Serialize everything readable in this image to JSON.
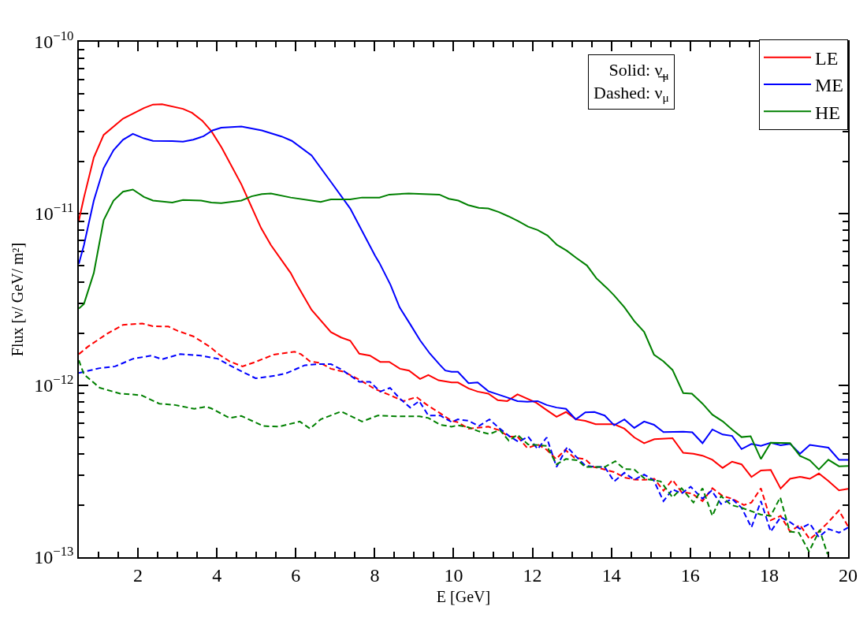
{
  "chart_data": {
    "type": "line",
    "xlabel": "E [GeV]",
    "ylabel": "Flux [ν/ GeV/ m²]",
    "annotations": [
      "Solid: ν̲$_{μ}$",
      "Dashed: ν$_{μ}$"
    ],
    "xlim": [
      0.5,
      20
    ],
    "xticks": [
      2,
      4,
      6,
      8,
      10,
      12,
      14,
      16,
      18,
      20
    ],
    "ylim": [
      1e-13,
      1e-10
    ],
    "log": "y",
    "yticks": [
      {
        "value": 1e-13,
        "label": "10$^{−13}$"
      },
      {
        "value": 1e-12,
        "label": "10$^{−12}$"
      },
      {
        "value": 1e-11,
        "label": "10$^{−11}$"
      },
      {
        "value": 1e-10,
        "label": "10$^{−10}$"
      }
    ],
    "grid": false,
    "legend": "top right",
    "marker": "none",
    "series": [
      {
        "name": "LE",
        "color": "#ff0000",
        "line_style": "solid",
        "x": [
          0.5,
          0.63,
          0.88,
          1.13,
          1.62,
          2.15,
          2.38,
          2.61,
          3.14,
          3.37,
          3.63,
          3.86,
          4.12,
          4.62,
          5.12,
          5.37,
          5.87,
          6.03,
          6.4,
          6.89,
          7.15,
          7.38,
          7.61,
          7.88,
          8.14,
          8.37,
          8.64,
          8.87,
          9.15,
          9.36,
          9.62,
          9.95,
          10.11,
          10.38,
          10.61,
          10.88,
          11.12,
          11.36,
          11.62,
          12.1,
          12.36,
          12.61,
          12.85,
          13.1,
          13.34,
          13.6,
          14.07,
          14.33,
          14.58,
          14.83,
          15.09,
          15.55,
          15.82,
          16.08,
          16.31,
          16.56,
          16.82,
          17.06,
          17.3,
          17.55,
          17.79,
          18.04,
          18.29,
          18.53,
          18.78,
          19.03,
          19.26,
          19.5,
          19.77,
          20
        ],
        "values": [
          9.1e-12,
          1.24e-11,
          2.12e-11,
          2.87e-11,
          3.57e-11,
          4.11e-11,
          4.31e-11,
          4.33e-11,
          4.07e-11,
          3.86e-11,
          3.47e-11,
          3.02e-11,
          2.42e-11,
          1.48e-11,
          8.24e-12,
          6.55e-12,
          4.51e-12,
          3.85e-12,
          2.75e-12,
          2.04e-12,
          1.9e-12,
          1.82e-12,
          1.53e-12,
          1.49e-12,
          1.37e-12,
          1.37e-12,
          1.25e-12,
          1.22e-12,
          1.09e-12,
          1.15e-12,
          1.07e-12,
          1.04e-12,
          1.04e-12,
          9.6e-13,
          9.2e-13,
          8.96e-13,
          8.2e-13,
          8.1e-13,
          8.87e-13,
          7.92e-13,
          7.18e-13,
          6.56e-13,
          7e-13,
          6.34e-13,
          6.22e-13,
          5.94e-13,
          5.94e-13,
          5.6e-13,
          4.98e-13,
          4.61e-13,
          4.86e-13,
          4.93e-13,
          4.05e-13,
          4e-13,
          3.9e-13,
          3.69e-13,
          3.31e-13,
          3.6e-13,
          3.47e-13,
          2.93e-13,
          3.2e-13,
          3.22e-13,
          2.51e-13,
          2.86e-13,
          2.94e-13,
          2.86e-13,
          3.07e-13,
          2.78e-13,
          2.45e-13,
          2.5e-13
        ]
      },
      {
        "name": "ME",
        "color": "#0000ff",
        "line_style": "solid",
        "x": [
          0.5,
          0.63,
          0.88,
          1.13,
          1.38,
          1.62,
          1.87,
          2.15,
          2.38,
          2.87,
          3.14,
          3.4,
          3.66,
          3.89,
          4.11,
          4.62,
          5.14,
          5.64,
          5.9,
          6.4,
          6.89,
          7.38,
          8.01,
          8.12,
          8.4,
          8.63,
          8.9,
          9.15,
          9.4,
          9.66,
          9.79,
          9.95,
          10.11,
          10.38,
          10.61,
          10.88,
          11.12,
          11.36,
          11.62,
          11.87,
          12.13,
          12.36,
          12.61,
          12.85,
          13.1,
          13.34,
          13.57,
          13.83,
          14.07,
          14.33,
          14.58,
          14.83,
          15.08,
          15.32,
          15.82,
          16.05,
          16.31,
          16.56,
          16.82,
          17.06,
          17.3,
          17.55,
          17.79,
          18.04,
          18.29,
          18.53,
          18.78,
          19.03,
          19.5,
          19.77,
          20
        ],
        "values": [
          5.1e-12,
          6.55e-12,
          1.19e-11,
          1.84e-11,
          2.34e-11,
          2.69e-11,
          2.91e-11,
          2.74e-11,
          2.65e-11,
          2.64e-11,
          2.62e-11,
          2.69e-11,
          2.82e-11,
          3.05e-11,
          3.16e-11,
          3.21e-11,
          3.05e-11,
          2.81e-11,
          2.65e-11,
          2.18e-11,
          1.53e-11,
          1.07e-11,
          5.68e-12,
          5.16e-12,
          3.85e-12,
          2.85e-12,
          2.27e-12,
          1.83e-12,
          1.53e-12,
          1.31e-12,
          1.22e-12,
          1.2e-12,
          1.2e-12,
          1.03e-12,
          1.04e-12,
          9.25e-13,
          8.87e-13,
          8.5e-13,
          8.1e-13,
          8.03e-13,
          8.1e-13,
          7.69e-13,
          7.43e-13,
          7.3e-13,
          6.34e-13,
          6.97e-13,
          7e-13,
          6.68e-13,
          5.86e-13,
          6.34e-13,
          5.66e-13,
          6.16e-13,
          5.9e-13,
          5.35e-13,
          5.38e-13,
          5.33e-13,
          4.61e-13,
          5.54e-13,
          5.18e-13,
          5.08e-13,
          4.26e-13,
          4.56e-13,
          4.45e-13,
          4.64e-13,
          4.48e-13,
          4.57e-13,
          4e-13,
          4.5e-13,
          4.34e-13,
          3.69e-13,
          3.69e-13
        ]
      },
      {
        "name": "HE",
        "color": "#008000",
        "line_style": "solid",
        "x": [
          0.5,
          0.63,
          0.88,
          1.13,
          1.38,
          1.62,
          1.87,
          2.15,
          2.38,
          2.87,
          3.14,
          3.6,
          3.86,
          4.11,
          4.62,
          4.88,
          5.14,
          5.37,
          5.87,
          6.4,
          6.63,
          6.89,
          7.38,
          7.68,
          8.12,
          8.37,
          8.86,
          9.64,
          9.88,
          10.12,
          10.37,
          10.64,
          10.88,
          11.15,
          11.39,
          11.64,
          11.89,
          12.13,
          12.38,
          12.62,
          12.87,
          13.11,
          13.38,
          13.62,
          13.89,
          14.07,
          14.33,
          14.58,
          14.83,
          15.08,
          15.32,
          15.55,
          15.82,
          16.04,
          16.31,
          16.56,
          16.82,
          17.06,
          17.3,
          17.53,
          17.79,
          18.04,
          18.53,
          18.78,
          19.03,
          19.26,
          19.5,
          19.77,
          20
        ],
        "values": [
          2.8e-12,
          2.98e-12,
          4.51e-12,
          9.16e-12,
          1.19e-11,
          1.34e-11,
          1.38e-11,
          1.25e-11,
          1.19e-11,
          1.16e-11,
          1.2e-11,
          1.19e-11,
          1.16e-11,
          1.15e-11,
          1.19e-11,
          1.26e-11,
          1.3e-11,
          1.31e-11,
          1.24e-11,
          1.19e-11,
          1.17e-11,
          1.21e-11,
          1.21e-11,
          1.24e-11,
          1.24e-11,
          1.29e-11,
          1.31e-11,
          1.29e-11,
          1.22e-11,
          1.19e-11,
          1.12e-11,
          1.08e-11,
          1.07e-11,
          1.02e-11,
          9.64e-12,
          9.03e-12,
          8.39e-12,
          8.02e-12,
          7.45e-12,
          6.58e-12,
          6.08e-12,
          5.52e-12,
          4.99e-12,
          4.2e-12,
          3.68e-12,
          3.34e-12,
          2.85e-12,
          2.37e-12,
          2.05e-12,
          1.51e-12,
          1.38e-12,
          1.23e-12,
          9.02e-13,
          8.96e-13,
          7.83e-13,
          6.75e-13,
          6.18e-13,
          5.54e-13,
          5e-13,
          5.06e-13,
          3.73e-13,
          4.64e-13,
          4.61e-13,
          3.89e-13,
          3.66e-13,
          3.24e-13,
          3.69e-13,
          3.38e-13,
          3.4e-13
        ]
      },
      {
        "color": "#ff0000",
        "line_style": "dashed",
        "x": [
          0.5,
          0.73,
          1.22,
          1.62,
          2.11,
          2.38,
          2.77,
          3.0,
          3.4,
          3.82,
          4.06,
          4.32,
          4.65,
          4.98,
          5.44,
          5.97,
          6.13,
          6.36,
          6.63,
          6.89,
          7.22,
          7.61,
          8.01,
          8.34,
          8.73,
          9.06,
          9.33,
          9.59,
          9.95,
          10.09,
          10.38,
          10.88,
          11.14,
          11.4,
          11.62,
          11.87,
          12.13,
          12.36,
          12.6,
          12.83,
          13.06,
          13.33,
          13.55,
          13.83,
          14.07,
          14.33,
          14.58,
          14.85,
          15.09,
          15.32,
          15.55,
          15.78,
          16.04,
          16.31,
          16.56,
          16.82,
          17.06,
          17.36,
          17.55,
          17.79,
          18.04,
          18.29,
          18.53,
          18.78,
          19.03,
          19.26,
          19.5,
          19.77,
          20
        ],
        "values": [
          1.52e-12,
          1.68e-12,
          2e-12,
          2.25e-12,
          2.29e-12,
          2.21e-12,
          2.2e-12,
          2.08e-12,
          1.93e-12,
          1.68e-12,
          1.51e-12,
          1.38e-12,
          1.29e-12,
          1.37e-12,
          1.51e-12,
          1.57e-12,
          1.52e-12,
          1.38e-12,
          1.35e-12,
          1.25e-12,
          1.2e-12,
          1.08e-12,
          9.51e-13,
          8.87e-13,
          8.1e-13,
          8.55e-13,
          7.69e-13,
          7.05e-13,
          6.22e-13,
          6.12e-13,
          5.6e-13,
          5.75e-13,
          5.5e-13,
          5.03e-13,
          5.03e-13,
          4.32e-13,
          4.53e-13,
          4.22e-13,
          3.73e-13,
          4.22e-13,
          3.79e-13,
          3.73e-13,
          3.35e-13,
          3.24e-13,
          3.13e-13,
          2.91e-13,
          2.83e-13,
          2.82e-13,
          2.86e-13,
          2.44e-13,
          2.82e-13,
          2.39e-13,
          2.35e-13,
          2.12e-13,
          2.52e-13,
          2.27e-13,
          2.19e-13,
          2.01e-13,
          2.08e-13,
          2.52e-13,
          1.64e-13,
          1.74e-13,
          1.41e-13,
          1.54e-13,
          1.27e-13,
          1.41e-13,
          1.6e-13,
          1.87e-13,
          1.51e-13
        ]
      },
      {
        "color": "#0000ff",
        "line_style": "dashed",
        "x": [
          0.5,
          1.03,
          1.42,
          1.88,
          2.34,
          2.61,
          3.07,
          3.59,
          4.02,
          4.32,
          4.65,
          4.98,
          5.5,
          5.77,
          6.23,
          6.56,
          6.89,
          7.15,
          7.61,
          7.88,
          8.14,
          8.39,
          8.63,
          8.9,
          9.13,
          9.36,
          9.66,
          9.95,
          10.11,
          10.38,
          10.64,
          10.91,
          11.17,
          11.43,
          11.65,
          11.89,
          12.13,
          12.36,
          12.61,
          12.88,
          13.1,
          13.34,
          13.57,
          13.83,
          14.07,
          14.33,
          14.58,
          14.83,
          15.07,
          15.32,
          15.55,
          15.78,
          16.01,
          16.31,
          16.54,
          16.78,
          17.06,
          17.3,
          17.55,
          17.79,
          18.04,
          18.29,
          18.53,
          18.78,
          19.03,
          19.26,
          19.5,
          19.77,
          20
        ],
        "values": [
          1.18e-12,
          1.26e-12,
          1.29e-12,
          1.43e-12,
          1.49e-12,
          1.42e-12,
          1.52e-12,
          1.49e-12,
          1.43e-12,
          1.31e-12,
          1.2e-12,
          1.1e-12,
          1.14e-12,
          1.18e-12,
          1.31e-12,
          1.33e-12,
          1.33e-12,
          1.24e-12,
          1.05e-12,
          1.05e-12,
          9.2e-13,
          9.68e-13,
          8.41e-13,
          7.43e-13,
          8.1e-13,
          6.68e-13,
          6.68e-13,
          6.12e-13,
          6.34e-13,
          6.22e-13,
          5.8e-13,
          6.34e-13,
          5.6e-13,
          5.03e-13,
          4.69e-13,
          5.03e-13,
          4.26e-13,
          4.98e-13,
          3.35e-13,
          4.38e-13,
          3.86e-13,
          3.41e-13,
          3.35e-13,
          3.35e-13,
          2.76e-13,
          3.1e-13,
          2.82e-13,
          3.03e-13,
          2.81e-13,
          2.12e-13,
          2.48e-13,
          2.35e-13,
          2.57e-13,
          2.19e-13,
          2.44e-13,
          2.04e-13,
          2.18e-13,
          1.94e-13,
          1.49e-13,
          2.12e-13,
          1.41e-13,
          1.71e-13,
          1.6e-13,
          1.46e-13,
          1.57e-13,
          1.31e-13,
          1.46e-13,
          1.39e-13,
          1.49e-13
        ]
      },
      {
        "color": "#008000",
        "line_style": "dashed",
        "x": [
          0.5,
          0.63,
          1.03,
          1.55,
          2.08,
          2.54,
          2.94,
          3.43,
          3.73,
          3.86,
          4.32,
          4.62,
          5.18,
          5.57,
          6.1,
          6.36,
          6.63,
          7.15,
          7.68,
          8.08,
          8.54,
          9.13,
          9.36,
          9.66,
          9.95,
          10.11,
          10.38,
          10.64,
          10.91,
          11.17,
          11.4,
          11.62,
          11.89,
          12.36,
          12.61,
          12.85,
          13.15,
          13.34,
          13.83,
          14.1,
          14.33,
          14.58,
          14.85,
          15.25,
          15.55,
          15.78,
          16.08,
          16.31,
          16.56,
          16.78,
          17.04,
          17.3,
          17.79,
          18.04,
          18.28,
          18.52,
          18.75,
          19.01,
          19.28,
          19.48
        ],
        "values": [
          1.4e-12,
          1.16e-12,
          9.68e-13,
          8.96e-13,
          8.77e-13,
          7.83e-13,
          7.69e-13,
          7.3e-13,
          7.52e-13,
          7.34e-13,
          6.46e-13,
          6.64e-13,
          5.8e-13,
          5.75e-13,
          6.16e-13,
          5.6e-13,
          6.34e-13,
          7.05e-13,
          6.16e-13,
          6.68e-13,
          6.61e-13,
          6.61e-13,
          6.46e-13,
          5.9e-13,
          5.75e-13,
          5.86e-13,
          5.7e-13,
          5.4e-13,
          5.21e-13,
          5.5e-13,
          4.77e-13,
          5.16e-13,
          4.53e-13,
          4.45e-13,
          3.47e-13,
          3.73e-13,
          3.66e-13,
          3.35e-13,
          3.35e-13,
          3.62e-13,
          3.26e-13,
          3.24e-13,
          2.86e-13,
          2.76e-13,
          2.23e-13,
          2.52e-13,
          2.08e-13,
          2.52e-13,
          1.74e-13,
          2.27e-13,
          2.01e-13,
          1.94e-13,
          1.77e-13,
          1.74e-13,
          2.23e-13,
          1.41e-13,
          1.39e-13,
          1.08e-13,
          1.44e-13,
          1.04e-13
        ]
      }
    ]
  }
}
